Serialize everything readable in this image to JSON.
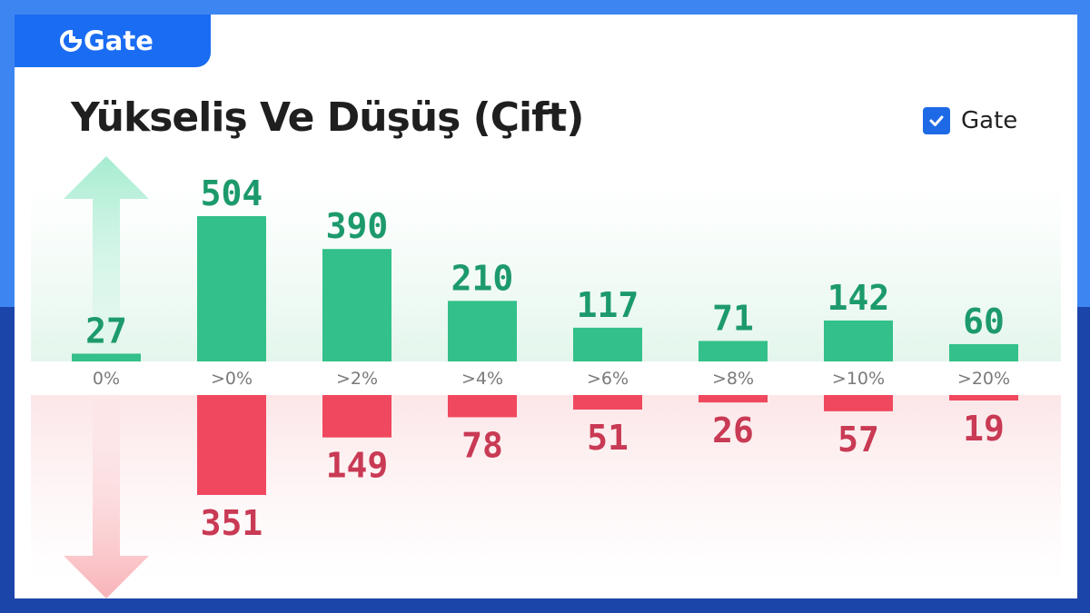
{
  "brand": {
    "logo_text": "Gate"
  },
  "title": "Yükseliş Ve Düşüş (Çift)",
  "legend": {
    "label": "Gate",
    "checked": true
  },
  "colors": {
    "up": "#33c08a",
    "up_label": "#1d9a6c",
    "down": "#f0485e",
    "down_label": "#c93a54",
    "brand": "#1a6cf2"
  },
  "chart_data": {
    "type": "bar",
    "title": "Yükseliş Ve Düşüş (Çift)",
    "categories": [
      "0%",
      ">0%",
      ">2%",
      ">4%",
      ">6%",
      ">8%",
      ">10%",
      ">20%"
    ],
    "series": [
      {
        "values": [
          27,
          504,
          390,
          210,
          117,
          71,
          142,
          60
        ]
      },
      {
        "values": [
          0,
          351,
          149,
          78,
          51,
          26,
          57,
          19
        ]
      }
    ],
    "data_labels": {
      "up": [
        "27",
        "504",
        "390",
        "210",
        "117",
        "71",
        "142",
        "60"
      ],
      "down": [
        "",
        "351",
        "149",
        "78",
        "51",
        "26",
        "57",
        "19"
      ]
    },
    "legend_position": "top-right",
    "grid": false
  }
}
